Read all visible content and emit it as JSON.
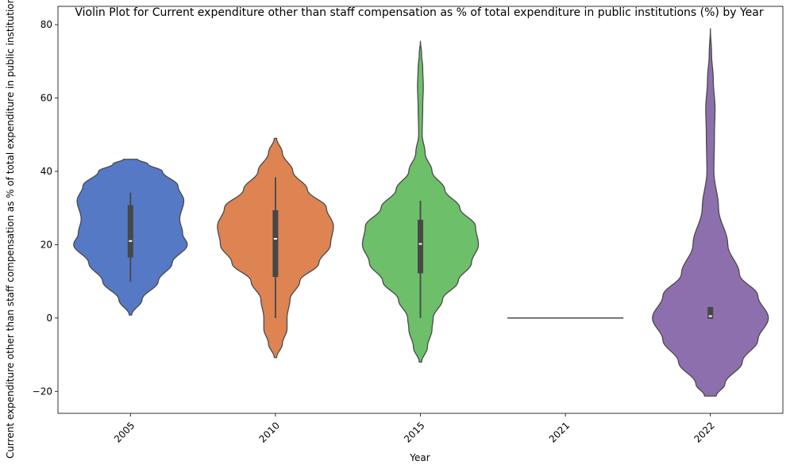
{
  "chart_data": {
    "type": "violin",
    "title": "Violin Plot for Current expenditure other than staff compensation as % of total expenditure in public institutions (%) by Year",
    "xlabel": "Year",
    "ylabel": "Current expenditure other than staff compensation as % of total expenditure in public institutions (%)",
    "categories": [
      "2005",
      "2010",
      "2015",
      "2021",
      "2022"
    ],
    "colors": [
      "#5579c5",
      "#dd8452",
      "#6dbf6a",
      "#8e6fae",
      "#8e6fae"
    ],
    "ylim": [
      -26,
      85
    ],
    "yticks": [
      -20,
      0,
      20,
      40,
      60,
      80
    ],
    "grid": false,
    "violins": [
      {
        "category": "2005",
        "min": 9.8,
        "q1": 16.5,
        "median": 21.0,
        "q3": 30.8,
        "max": 34.2,
        "profile": [
          [
            0.8,
            0.02
          ],
          [
            5,
            0.2
          ],
          [
            10,
            0.48
          ],
          [
            15,
            0.72
          ],
          [
            20,
            0.98
          ],
          [
            23,
            0.9
          ],
          [
            27,
            0.85
          ],
          [
            32,
            0.92
          ],
          [
            36,
            0.82
          ],
          [
            40,
            0.55
          ],
          [
            42,
            0.3
          ],
          [
            43.3,
            0.12
          ]
        ]
      },
      {
        "category": "2010",
        "min": 0.0,
        "q1": 11.2,
        "median": 21.6,
        "q3": 29.4,
        "max": 38.4,
        "profile": [
          [
            -10.8,
            0.02
          ],
          [
            -7,
            0.12
          ],
          [
            -3,
            0.2
          ],
          [
            0,
            0.2
          ],
          [
            5,
            0.25
          ],
          [
            10,
            0.42
          ],
          [
            15,
            0.75
          ],
          [
            20,
            0.95
          ],
          [
            25,
            1.0
          ],
          [
            30,
            0.88
          ],
          [
            35,
            0.55
          ],
          [
            40,
            0.3
          ],
          [
            45,
            0.12
          ],
          [
            49,
            0.02
          ]
        ]
      },
      {
        "category": "2015",
        "min": 0.0,
        "q1": 12.2,
        "median": 20.2,
        "q3": 26.8,
        "max": 32.0,
        "profile": [
          [
            -12,
            0.02
          ],
          [
            -8,
            0.12
          ],
          [
            -3,
            0.2
          ],
          [
            0,
            0.22
          ],
          [
            5,
            0.38
          ],
          [
            10,
            0.65
          ],
          [
            15,
            0.88
          ],
          [
            20,
            1.0
          ],
          [
            25,
            0.95
          ],
          [
            30,
            0.68
          ],
          [
            35,
            0.42
          ],
          [
            40,
            0.2
          ],
          [
            45,
            0.08
          ],
          [
            50,
            0.03
          ],
          [
            58,
            0.04
          ],
          [
            63,
            0.05
          ],
          [
            68,
            0.04
          ],
          [
            72,
            0.02
          ],
          [
            75.6,
            0.0
          ]
        ]
      },
      {
        "category": "2021",
        "min": 0.0,
        "q1": 0.0,
        "median": 0.0,
        "q3": 0.0,
        "max": 0.0,
        "profile": [
          [
            0,
            1.0
          ]
        ]
      },
      {
        "category": "2022",
        "min": -0.2,
        "q1": -0.2,
        "median": 0.5,
        "q3": 3.0,
        "max": 3.0,
        "profile": [
          [
            -21.3,
            0.1
          ],
          [
            -18,
            0.25
          ],
          [
            -12,
            0.55
          ],
          [
            -6,
            0.82
          ],
          [
            0,
            1.0
          ],
          [
            6,
            0.82
          ],
          [
            12,
            0.5
          ],
          [
            20,
            0.3
          ],
          [
            30,
            0.14
          ],
          [
            40,
            0.06
          ],
          [
            50,
            0.07
          ],
          [
            57,
            0.08
          ],
          [
            65,
            0.05
          ],
          [
            72,
            0.02
          ],
          [
            79,
            0.0
          ]
        ]
      }
    ]
  }
}
